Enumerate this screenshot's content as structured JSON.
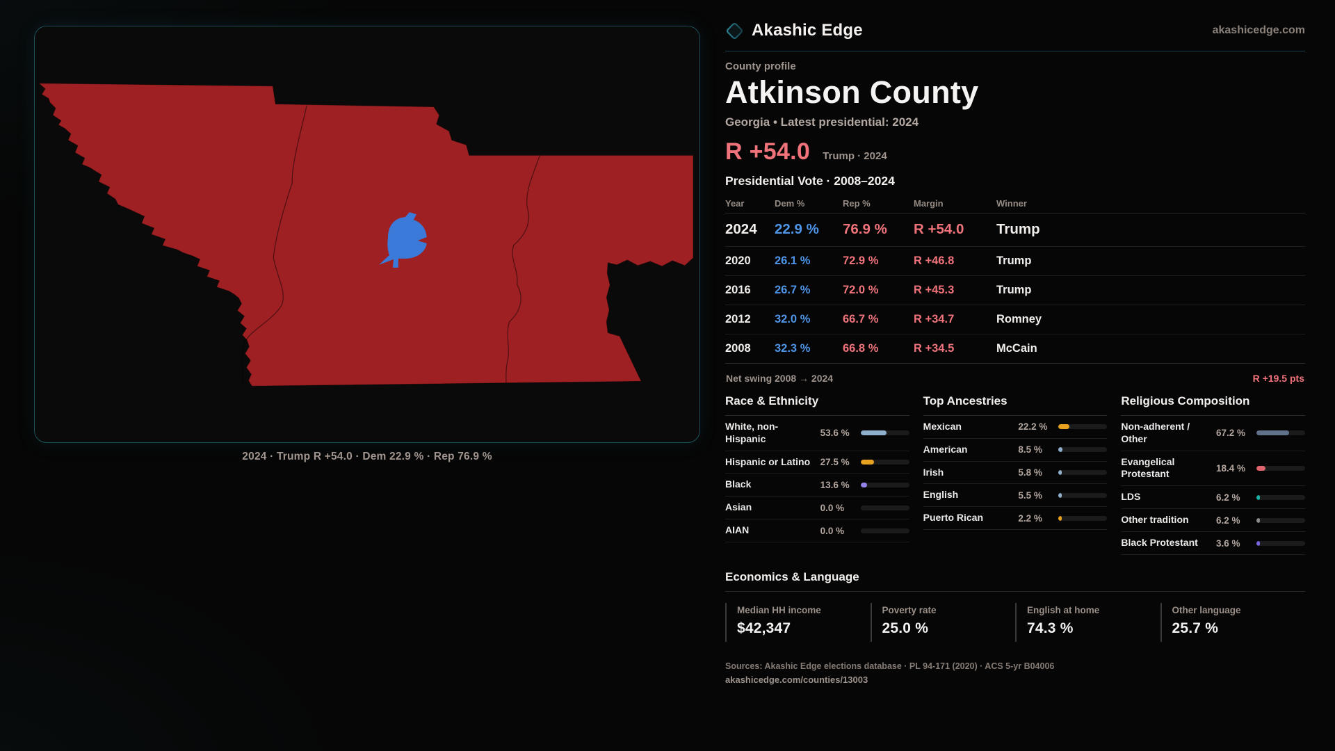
{
  "brand": {
    "name": "Akashic Edge",
    "domain": "akashicedge.com"
  },
  "profile": {
    "kicker": "County profile",
    "title": "Atkinson County",
    "subtitle": "Georgia • Latest presidential: 2024",
    "headline_margin": "R +54.0",
    "headline_context": "Trump · 2024"
  },
  "map": {
    "caption": "2024 · Trump R +54.0 · Dem 22.9 % · Rep 76.9 %"
  },
  "vote_table": {
    "title": "Presidential Vote · 2008–2024",
    "columns": {
      "year": "Year",
      "dem": "Dem %",
      "rep": "Rep %",
      "margin": "Margin",
      "winner": "Winner"
    },
    "rows": [
      {
        "year": "2024",
        "dem": "22.9 %",
        "rep": "76.9 %",
        "margin": "R +54.0",
        "winner": "Trump",
        "latest": true
      },
      {
        "year": "2020",
        "dem": "26.1 %",
        "rep": "72.9 %",
        "margin": "R +46.8",
        "winner": "Trump",
        "latest": false
      },
      {
        "year": "2016",
        "dem": "26.7 %",
        "rep": "72.0 %",
        "margin": "R +45.3",
        "winner": "Trump",
        "latest": false
      },
      {
        "year": "2012",
        "dem": "32.0 %",
        "rep": "66.7 %",
        "margin": "R +34.7",
        "winner": "Romney",
        "latest": false
      },
      {
        "year": "2008",
        "dem": "32.3 %",
        "rep": "66.8 %",
        "margin": "R +34.5",
        "winner": "McCain",
        "latest": false
      }
    ]
  },
  "net_swing": {
    "label": "Net swing 2008 → 2024",
    "value": "R +19.5 pts"
  },
  "demographics": {
    "race": {
      "title": "Race & Ethnicity",
      "items": [
        {
          "label": "White, non-Hispanic",
          "value": "53.6 %",
          "pct": 53.6,
          "color": "#8fb0cc"
        },
        {
          "label": "Hispanic or Latino",
          "value": "27.5 %",
          "pct": 27.5,
          "color": "#e8a21f"
        },
        {
          "label": "Black",
          "value": "13.6 %",
          "pct": 13.6,
          "color": "#9583ea"
        },
        {
          "label": "Asian",
          "value": "0.0 %",
          "pct": 0,
          "color": "#8fb0cc"
        },
        {
          "label": "AIAN",
          "value": "0.0 %",
          "pct": 0,
          "color": "#8fb0cc"
        }
      ]
    },
    "ancestries": {
      "title": "Top Ancestries",
      "items": [
        {
          "label": "Mexican",
          "value": "22.2 %",
          "pct": 22.2,
          "color": "#e8a21f"
        },
        {
          "label": "American",
          "value": "8.5 %",
          "pct": 8.5,
          "color": "#8fb0cc"
        },
        {
          "label": "Irish",
          "value": "5.8 %",
          "pct": 5.8,
          "color": "#8fb0cc"
        },
        {
          "label": "English",
          "value": "5.5 %",
          "pct": 5.5,
          "color": "#8fb0cc"
        },
        {
          "label": "Puerto Rican",
          "value": "2.2 %",
          "pct": 2.2,
          "color": "#e8a21f"
        }
      ]
    },
    "religion": {
      "title": "Religious Composition",
      "items": [
        {
          "label": "Non-adherent / Other",
          "value": "67.2 %",
          "pct": 67.2,
          "color": "#62718a"
        },
        {
          "label": "Evangelical Protestant",
          "value": "18.4 %",
          "pct": 18.4,
          "color": "#e0646e"
        },
        {
          "label": "LDS",
          "value": "6.2 %",
          "pct": 6.2,
          "color": "#1ab5a8"
        },
        {
          "label": "Other tradition",
          "value": "6.2 %",
          "pct": 6.2,
          "color": "#8d8d8d"
        },
        {
          "label": "Black Protestant",
          "value": "3.6 %",
          "pct": 3.6,
          "color": "#7a63e0"
        }
      ]
    }
  },
  "economics": {
    "title": "Economics & Language",
    "stats": [
      {
        "label": "Median HH income",
        "value": "$42,347"
      },
      {
        "label": "Poverty rate",
        "value": "25.0 %"
      },
      {
        "label": "English at home",
        "value": "74.3 %"
      },
      {
        "label": "Other language",
        "value": "25.7 %"
      }
    ]
  },
  "footer": {
    "sources": "Sources: Akashic Edge elections database · PL 94-171 (2020) · ACS 5-yr B04006",
    "permalink": "akashicedge.com/counties/13003"
  },
  "colors": {
    "accent_rep": "#f0737b",
    "accent_dem": "#4e95e8",
    "county_fill": "#9e2023",
    "county_line": "rgba(10,2,2,0.5)",
    "city_fill": "#3b7ad8",
    "panel_border": "#1d4f59"
  }
}
